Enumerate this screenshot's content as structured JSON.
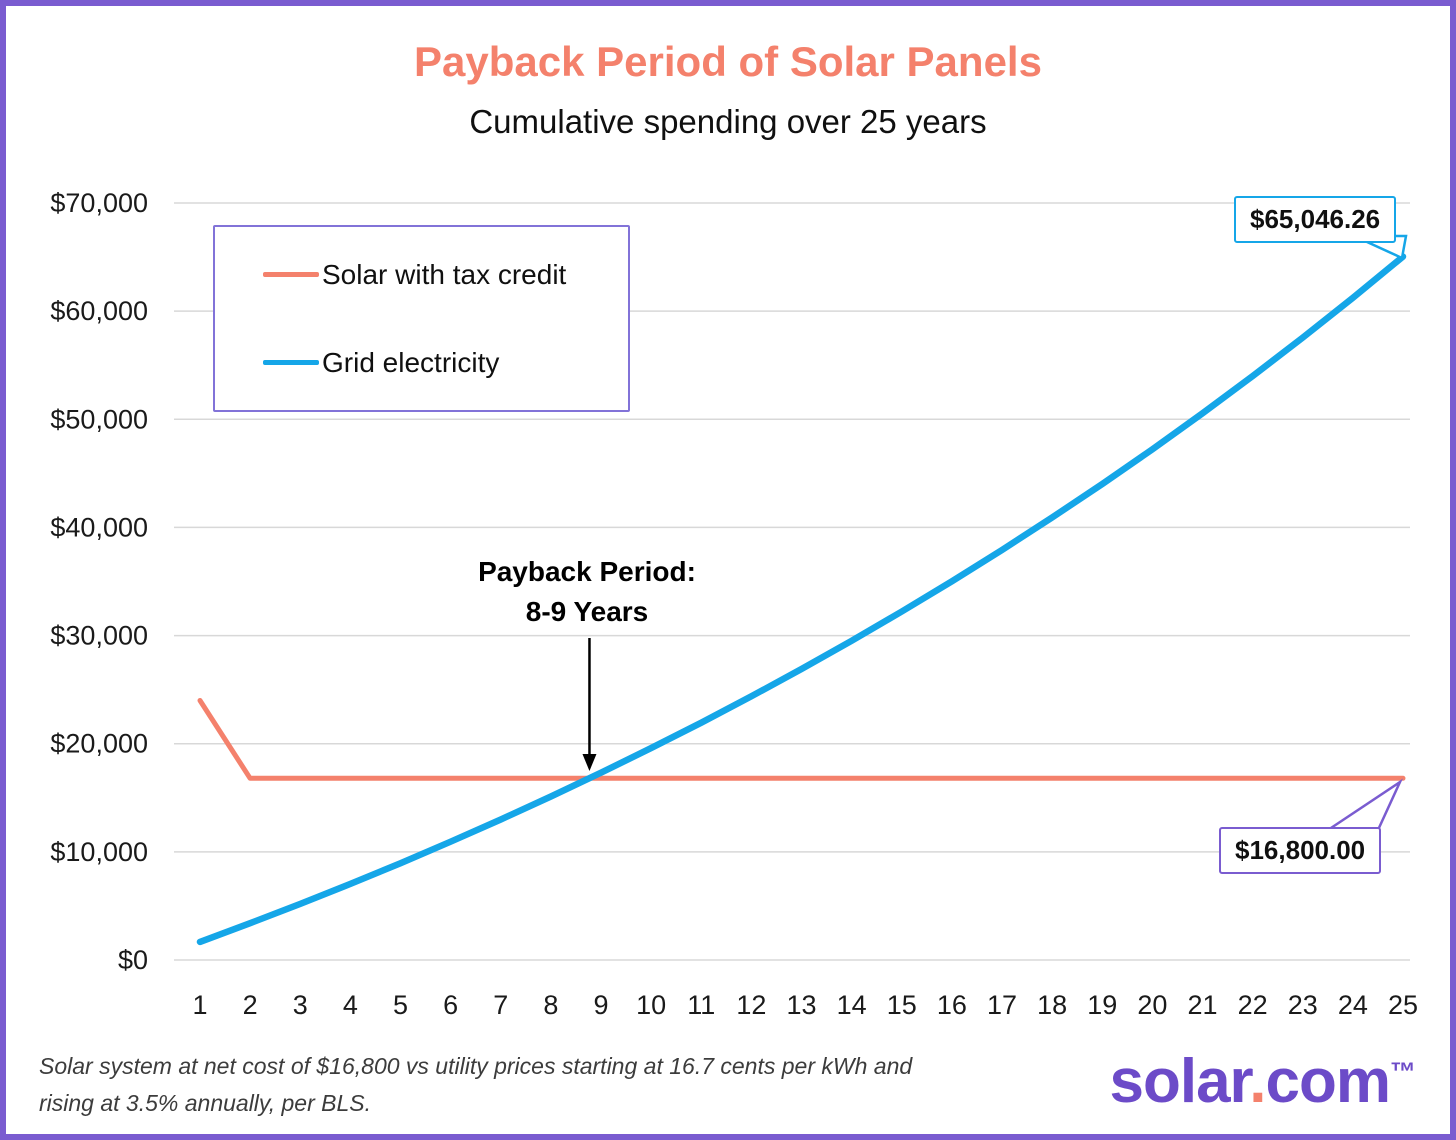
{
  "palette": {
    "coral": "#F4816C",
    "blue": "#15A6E8",
    "purple": "#7A5CD0",
    "logo-purple": "#6C4BC8",
    "grid-gray": "#D8D8D8"
  },
  "chart_data": {
    "type": "line",
    "title": "Payback Period of Solar Panels",
    "subtitle": "Cumulative spending over 25 years",
    "x": [
      1,
      2,
      3,
      4,
      5,
      6,
      7,
      8,
      9,
      10,
      11,
      12,
      13,
      14,
      15,
      16,
      17,
      18,
      19,
      20,
      21,
      22,
      23,
      24,
      25
    ],
    "series": [
      {
        "name": "Solar with tax credit",
        "color": "#F4816C",
        "values": [
          24000,
          16800,
          16800,
          16800,
          16800,
          16800,
          16800,
          16800,
          16800,
          16800,
          16800,
          16800,
          16800,
          16800,
          16800,
          16800,
          16800,
          16800,
          16800,
          16800,
          16800,
          16800,
          16800,
          16800,
          16800
        ]
      },
      {
        "name": "Grid electricity",
        "color": "#15A6E8",
        "values": [
          1670.0,
          3398.45,
          5187.4,
          7038.95,
          8955.32,
          10938.75,
          12991.61,
          15116.32,
          17315.39,
          19591.43,
          21947.13,
          24385.27,
          26908.76,
          29520.56,
          32223.78,
          35021.62,
          37917.37,
          40914.48,
          44016.48,
          47227.06,
          50550.01,
          53989.26,
          57548.88,
          61233.09,
          65046.26
        ]
      }
    ],
    "ylim": [
      0,
      70000
    ],
    "ytick_step": 10000,
    "ytick_labels": [
      "$0",
      "$10,000",
      "$20,000",
      "$30,000",
      "$40,000",
      "$50,000",
      "$60,000",
      "$70,000"
    ],
    "grid": true,
    "legend_position": "top-left",
    "annotations": {
      "payback": {
        "line1": "Payback Period:",
        "line2": "8-9 Years",
        "x": 8.77
      },
      "end_labels": {
        "grid": "$65,046.26",
        "solar": "$16,800.00"
      }
    }
  },
  "footnote": {
    "line1": "Solar system at net cost of $16,800 vs utility prices starting at 16.7 cents per kWh and",
    "line2": "rising at 3.5% annually, per BLS."
  },
  "logo": {
    "name": "solar",
    "dot": ".",
    "tld": "com",
    "tm": "™"
  }
}
